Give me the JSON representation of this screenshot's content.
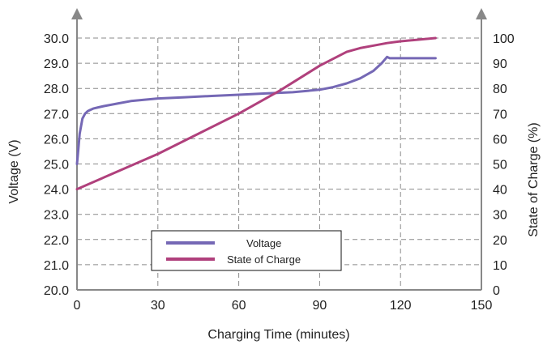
{
  "chart_data": {
    "type": "line",
    "xlabel": "Charging Time (minutes)",
    "ylabel": "Voltage (V)",
    "y2label": "State of Charge (%)",
    "xlim": [
      0,
      150
    ],
    "ylim": [
      20,
      30
    ],
    "y2lim": [
      0,
      100
    ],
    "grid": true,
    "legend_position": "bottom-left",
    "x_ticks": [
      "0",
      "30",
      "60",
      "90",
      "120",
      "150"
    ],
    "x_tick_values": [
      0,
      30,
      60,
      90,
      120,
      150
    ],
    "y_ticks": [
      "20.0",
      "21.0",
      "22.0",
      "23.0",
      "24.0",
      "25.0",
      "26.0",
      "27.0",
      "28.0",
      "29.0",
      "30.0"
    ],
    "y_tick_values": [
      20,
      21,
      22,
      23,
      24,
      25,
      26,
      27,
      28,
      29,
      30
    ],
    "y2_ticks": [
      "0",
      "10",
      "20",
      "30",
      "40",
      "50",
      "60",
      "70",
      "80",
      "90",
      "100"
    ],
    "y2_tick_values": [
      0,
      10,
      20,
      30,
      40,
      50,
      60,
      70,
      80,
      90,
      100
    ],
    "series": [
      {
        "name": "Voltage",
        "axis": "left",
        "color": "#7568b5",
        "x": [
          0,
          0.5,
          1,
          2,
          3,
          4,
          5,
          6,
          8,
          10,
          15,
          20,
          30,
          40,
          50,
          60,
          70,
          80,
          90,
          95,
          100,
          105,
          110,
          113,
          115,
          116,
          120,
          125,
          133
        ],
        "y": [
          25.0,
          25.6,
          26.2,
          26.8,
          27.0,
          27.1,
          27.15,
          27.2,
          27.25,
          27.3,
          27.4,
          27.5,
          27.6,
          27.65,
          27.7,
          27.75,
          27.8,
          27.85,
          27.95,
          28.05,
          28.2,
          28.4,
          28.7,
          29.0,
          29.25,
          29.2,
          29.2,
          29.2,
          29.2
        ]
      },
      {
        "name": "State of Charge",
        "axis": "right",
        "color": "#b0407c",
        "x": [
          0,
          30,
          60,
          75,
          90,
          100,
          105,
          110,
          115,
          120,
          125,
          133
        ],
        "y": [
          40,
          54,
          70,
          79,
          89,
          94.5,
          96,
          97,
          98,
          98.7,
          99.2,
          100
        ]
      }
    ]
  }
}
